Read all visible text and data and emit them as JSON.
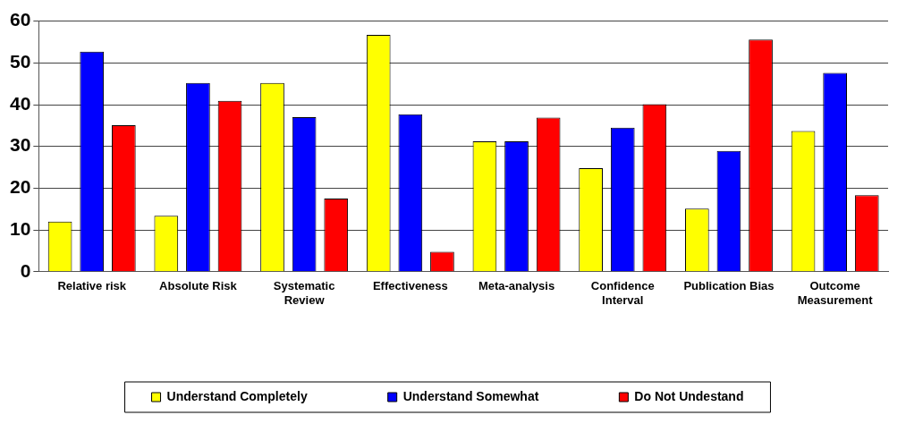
{
  "chart_data": {
    "type": "bar",
    "categories": [
      "Relative risk",
      "Absolute Risk",
      "Systematic\nReview",
      "Effectiveness",
      "Meta-analysis",
      "Confidence\nInterval",
      "Publication Bias",
      "Outcome\nMeasurement"
    ],
    "series": [
      {
        "name": "Understand Completely",
        "color": "#ffff00",
        "values": [
          12,
          13.4,
          45.2,
          56.7,
          31.2,
          24.8,
          15.1,
          33.7
        ]
      },
      {
        "name": "Understand Somewhat",
        "color": "#0000ff",
        "values": [
          52.7,
          45.2,
          37.0,
          37.7,
          31.2,
          34.5,
          28.9,
          47.6
        ]
      },
      {
        "name": "Do Not Undestand",
        "color": "#ff0000",
        "values": [
          35.1,
          40.9,
          17.5,
          4.8,
          36.9,
          40.1,
          55.6,
          18.3
        ]
      }
    ],
    "ylim": [
      0,
      60
    ],
    "yticks": [
      0,
      10,
      20,
      30,
      40,
      50,
      60
    ],
    "grid": "y",
    "legend": "bottom"
  }
}
